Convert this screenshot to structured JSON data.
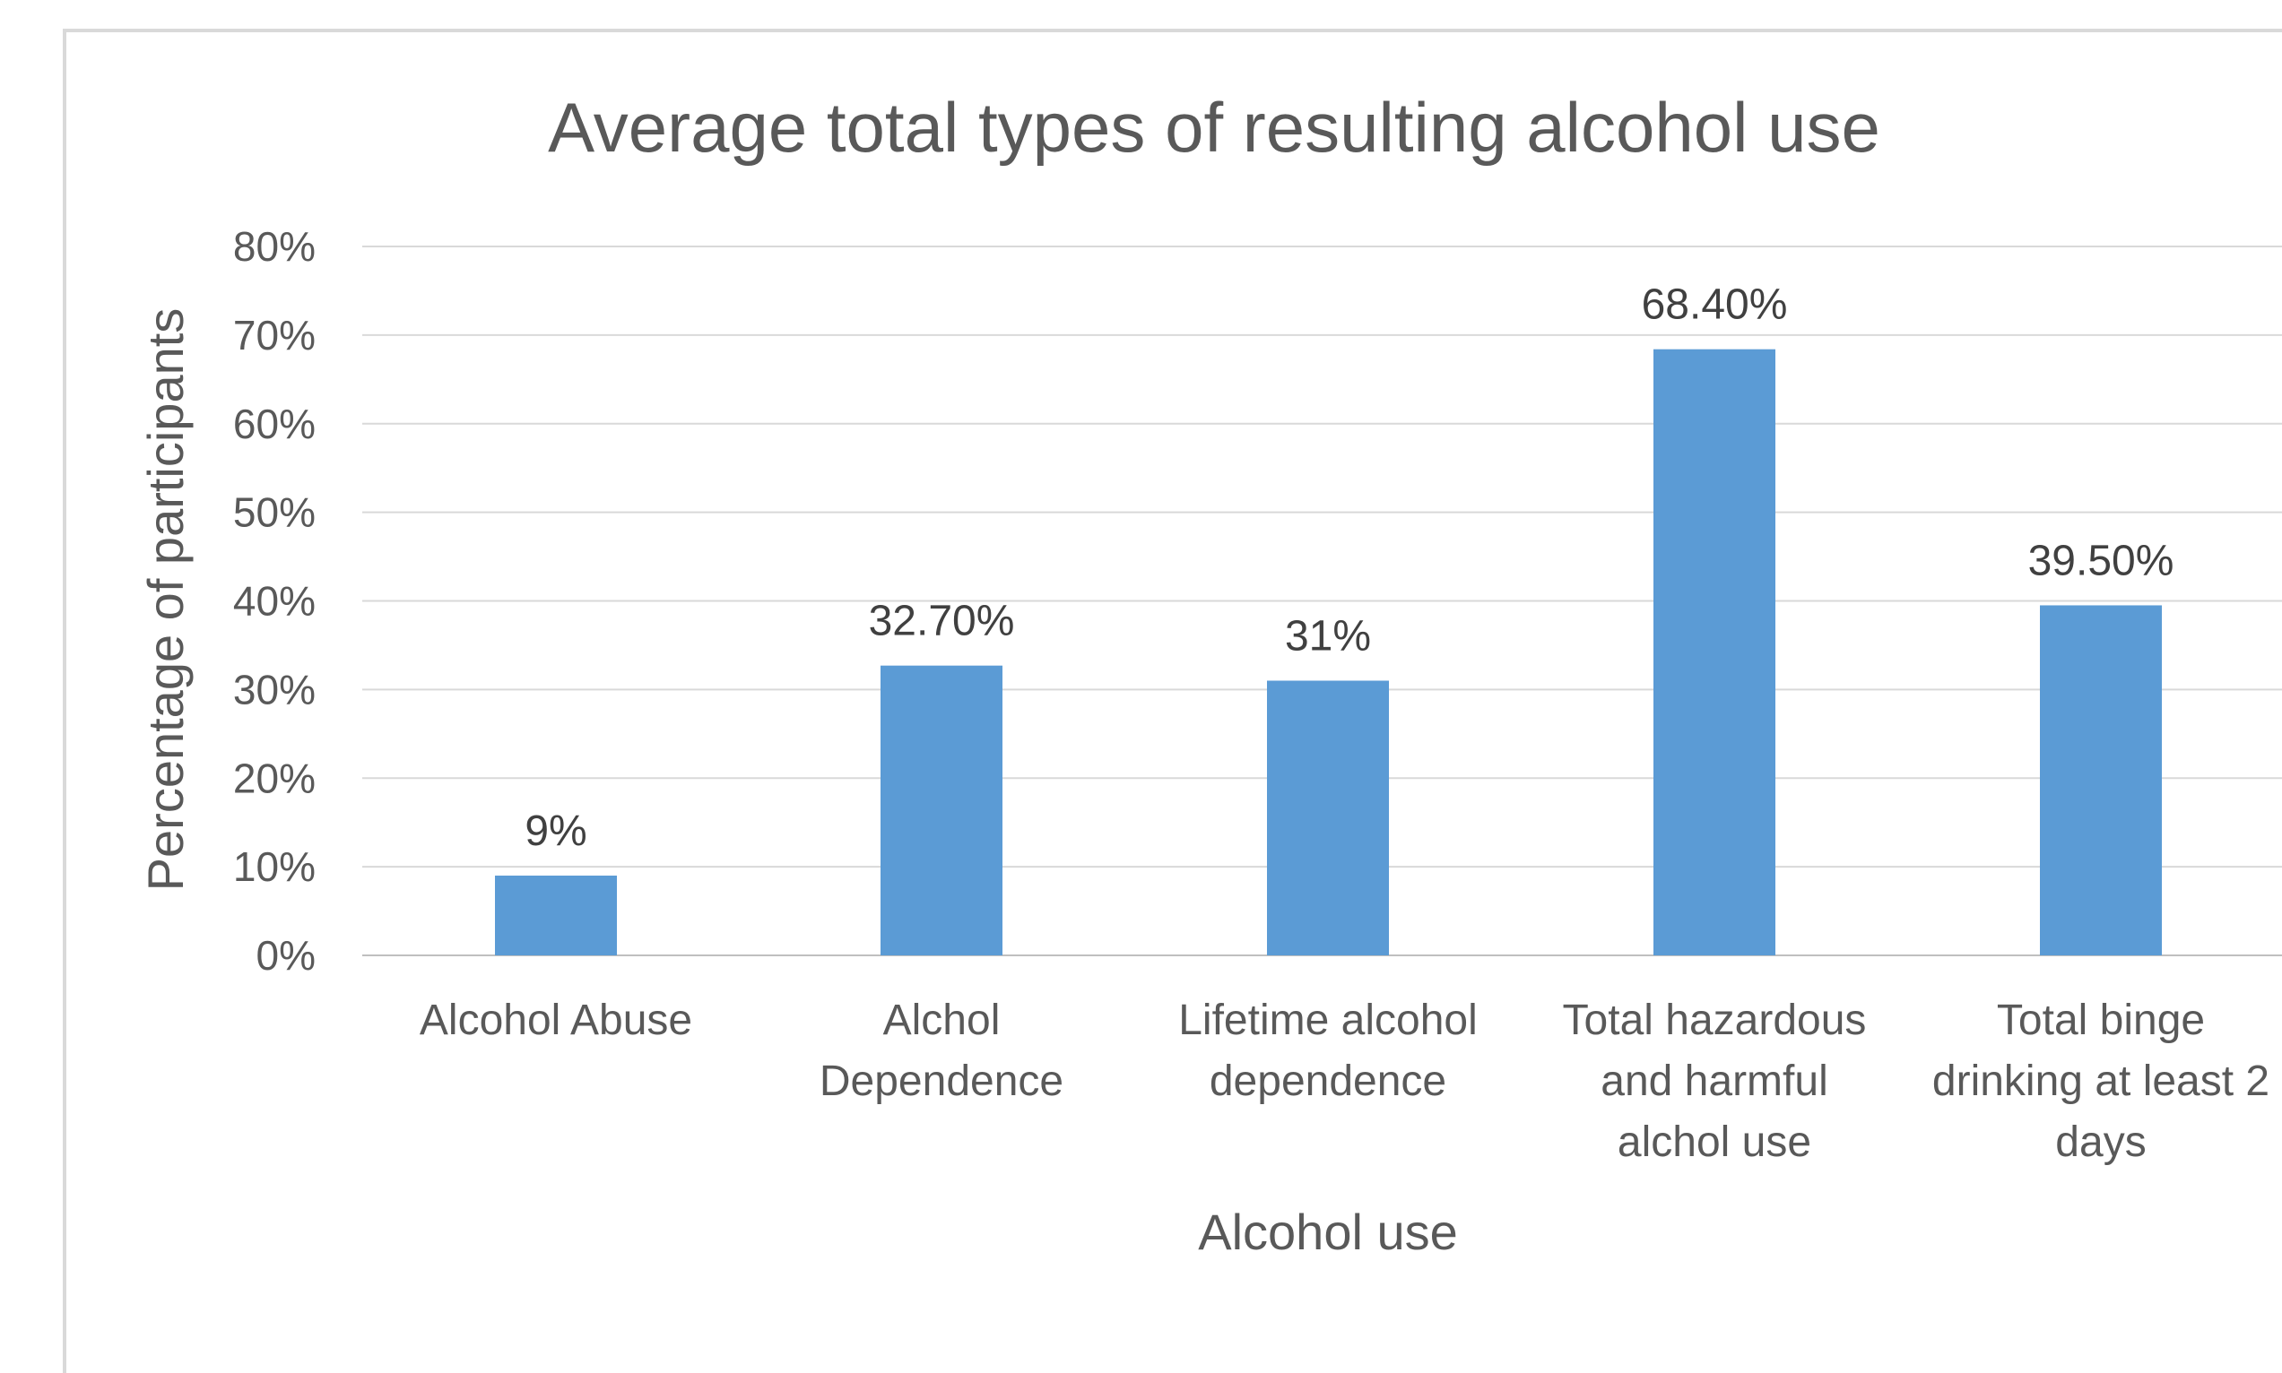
{
  "chart_data": {
    "type": "bar",
    "title": "Average total types of resulting alcohol use",
    "xlabel": "Alcohol use",
    "ylabel": "Percentage of participants",
    "ylim": [
      0,
      80
    ],
    "yticks": [
      "0%",
      "10%",
      "20%",
      "30%",
      "40%",
      "50%",
      "60%",
      "70%",
      "80%"
    ],
    "grid": true,
    "legend": "none",
    "bar_color": "#5b9bd5",
    "categories": [
      [
        "Alcohol Abuse"
      ],
      [
        "Alchol",
        "Dependence"
      ],
      [
        "Lifetime alcohol",
        "dependence"
      ],
      [
        "Total hazardous",
        "and harmful",
        "alchol use"
      ],
      [
        "Total binge",
        "drinking at least 2",
        "days"
      ]
    ],
    "values": [
      9,
      32.7,
      31,
      68.4,
      39.5
    ],
    "data_labels": [
      "9%",
      "32.70%",
      "31%",
      "68.40%",
      "39.50%"
    ]
  }
}
